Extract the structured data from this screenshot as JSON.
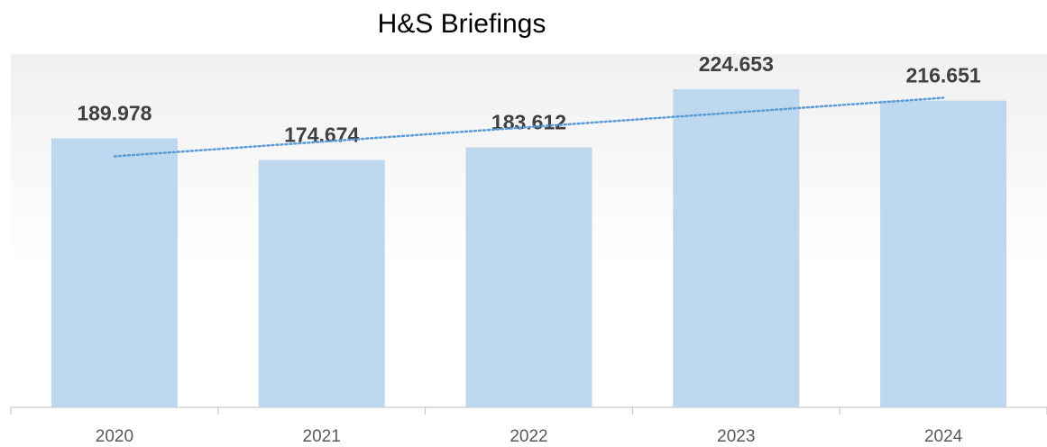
{
  "chart_data": {
    "type": "bar",
    "title": "H&S Briefings",
    "categories": [
      "2020",
      "2021",
      "2022",
      "2023",
      "2024"
    ],
    "values": [
      189.978,
      174.674,
      183.612,
      224.653,
      216.651
    ],
    "color": "#bdd7ee",
    "trendline": true,
    "trendline_color": "#5b9bd5"
  }
}
